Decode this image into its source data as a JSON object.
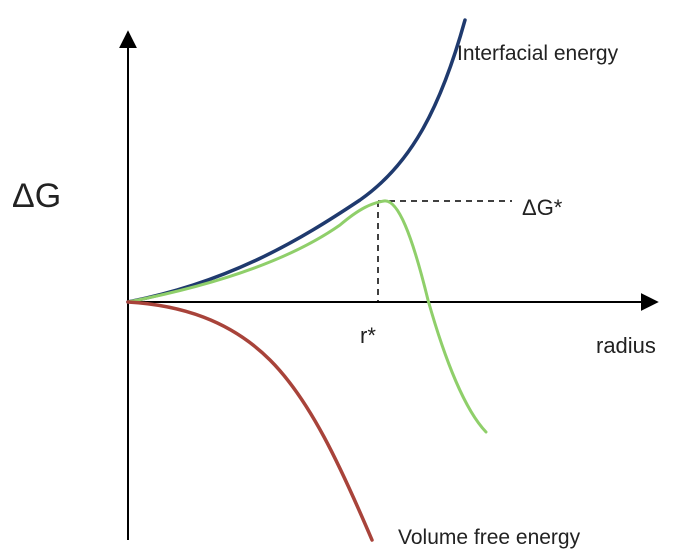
{
  "labels": {
    "y_axis": "ΔG",
    "x_axis": "radius",
    "critical_energy": "ΔG*",
    "critical_radius": "r*",
    "interfacial": "Interfacial energy",
    "volume": "Volume free energy"
  },
  "colors": {
    "axis": "#000000",
    "interfacial": "#1f3a6e",
    "total": "#8fcf6a",
    "volume": "#a8433a",
    "guide": "#000000"
  }
}
